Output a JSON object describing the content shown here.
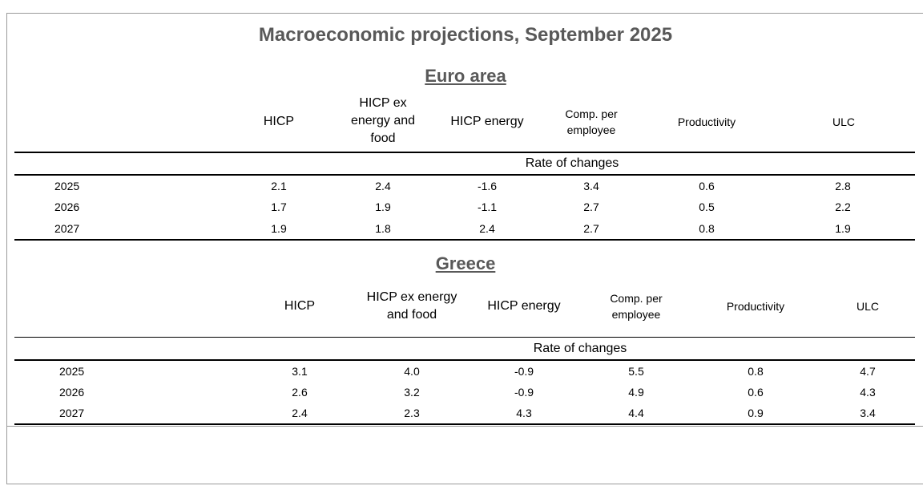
{
  "title": "Macroeconomic projections, September 2025",
  "euro": {
    "heading": "Euro area",
    "columns": [
      "HICP",
      "HICP ex energy and food",
      "HICP energy",
      "Comp. per employee",
      "Productivity",
      "ULC"
    ],
    "subheader": "Rate of changes",
    "rows": [
      {
        "year": "2025",
        "values": [
          "2.1",
          "2.4",
          "-1.6",
          "3.4",
          "0.6",
          "2.8"
        ]
      },
      {
        "year": "2026",
        "values": [
          "1.7",
          "1.9",
          "-1.1",
          "2.7",
          "0.5",
          "2.2"
        ]
      },
      {
        "year": "2027",
        "values": [
          "1.9",
          "1.8",
          "2.4",
          "2.7",
          "0.8",
          "1.9"
        ]
      }
    ]
  },
  "greece": {
    "heading": "Greece",
    "columns": [
      "HICP",
      "HICP ex energy and food",
      "HICP energy",
      "Comp. per employee",
      "Productivity",
      "ULC"
    ],
    "subheader": "Rate of changes",
    "rows": [
      {
        "year": "2025",
        "values": [
          "3.1",
          "4.0",
          "-0.9",
          "5.5",
          "0.8",
          "4.7"
        ]
      },
      {
        "year": "2026",
        "values": [
          "2.6",
          "3.2",
          "-0.9",
          "4.9",
          "0.6",
          "4.3"
        ]
      },
      {
        "year": "2027",
        "values": [
          "2.4",
          "2.3",
          "4.3",
          "4.4",
          "0.9",
          "3.4"
        ]
      }
    ]
  }
}
